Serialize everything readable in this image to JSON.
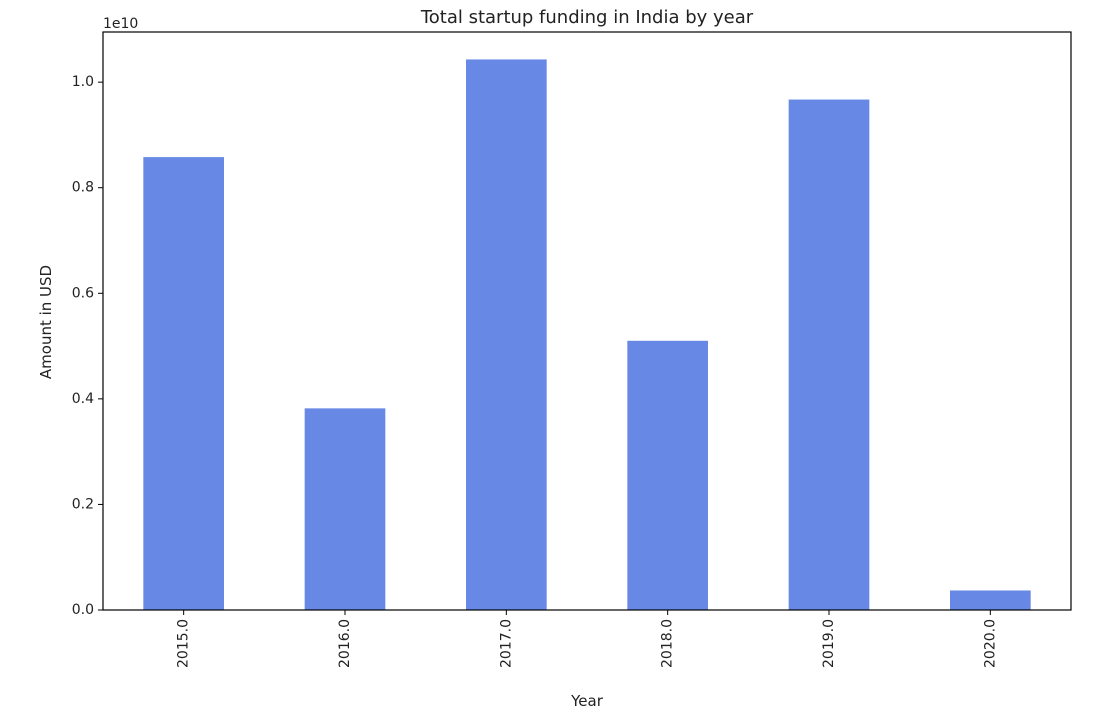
{
  "chart_data": {
    "type": "bar",
    "title": "Total startup funding in India by year",
    "xlabel": "Year",
    "ylabel": "Amount in USD",
    "offset_label": "1e10",
    "categories": [
      "2015.0",
      "2016.0",
      "2017.0",
      "2018.0",
      "2019.0",
      "2020.0"
    ],
    "values": [
      8580000000,
      3820000000,
      10430000000,
      5100000000,
      9670000000,
      370000000
    ],
    "ylim": [
      0,
      10950000000
    ],
    "yticks": [
      0,
      2000000000,
      4000000000,
      6000000000,
      8000000000,
      10000000000
    ],
    "ytick_labels": [
      "0.0",
      "0.2",
      "0.4",
      "0.6",
      "0.8",
      "1.0"
    ],
    "grid": false,
    "bar_color": "#6788e5"
  }
}
